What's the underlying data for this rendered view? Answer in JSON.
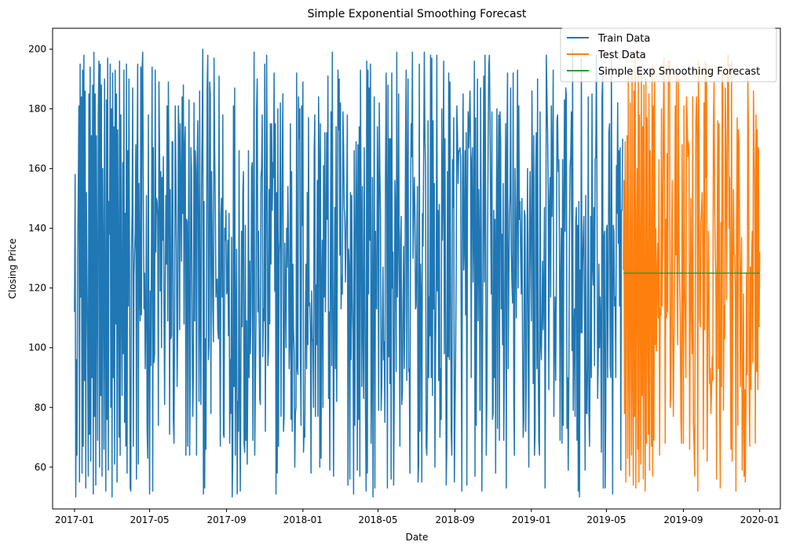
{
  "chart_data": {
    "type": "line",
    "title": "Simple Exponential Smoothing Forecast",
    "xlabel": "Date",
    "ylabel": "Closing Price",
    "xlim": [
      "2016-11-27",
      "2020-02-03"
    ],
    "ylim": [
      46,
      207
    ],
    "x_ticks": [
      "2017-01",
      "2017-05",
      "2017-09",
      "2018-01",
      "2018-05",
      "2018-09",
      "2019-01",
      "2019-05",
      "2019-09",
      "2020-01"
    ],
    "y_ticks": [
      60,
      80,
      100,
      120,
      140,
      160,
      180,
      200
    ],
    "legend_position": "top-right",
    "grid": false,
    "series": [
      {
        "name": "Train Data",
        "color": "#1f77b4",
        "x_start": "2017-01-01",
        "x_end": "2019-05-27",
        "value_min": 50,
        "value_max": 200,
        "values_preview": [
          112,
          158,
          50,
          96,
          64,
          131,
          153,
          181,
          55,
          195,
          117,
          184,
          58,
          193,
          67,
          198,
          89,
          186,
          53,
          152,
          125,
          99,
          57,
          185,
          71,
          194,
          62,
          171,
          90,
          188,
          51,
          199,
          77,
          185,
          54,
          171,
          120,
          69,
          178,
          196,
          60,
          195,
          84,
          188,
          57,
          160,
          129,
          66,
          190,
          103,
          52,
          183,
          76,
          197,
          59,
          149,
          138,
          195,
          80,
          180,
          50,
          192,
          90,
          174,
          61,
          193,
          108,
          185,
          55,
          173,
          125,
          70,
          196,
          64,
          178,
          113,
          84,
          162,
          98,
          193,
          75,
          145,
          67,
          195,
          58,
          166,
          114,
          190,
          125
        ]
      },
      {
        "name": "Test Data",
        "color": "#ff7f0e",
        "x_start": "2019-05-28",
        "x_end": "2020-01-01",
        "value_min": 52,
        "value_max": 199,
        "values_preview": [
          126,
          156,
          78,
          169,
          55,
          138,
          171,
          63,
          191,
          96,
          57,
          182,
          117,
          64,
          193,
          88,
          54,
          186,
          77,
          199,
          53,
          134,
          160,
          66,
          192,
          55,
          178,
          121,
          61,
          194,
          84,
          174,
          56,
          188,
          102,
          52,
          190,
          68,
          177,
          110,
          71,
          185,
          59,
          166,
          128,
          67,
          195,
          57,
          181,
          69,
          190,
          101,
          140
        ]
      },
      {
        "name": "Simple Exp Smoothing Forecast",
        "color": "#2ca02c",
        "x": [
          "2019-05-28",
          "2020-01-01"
        ],
        "values": [
          125,
          125
        ]
      }
    ]
  }
}
